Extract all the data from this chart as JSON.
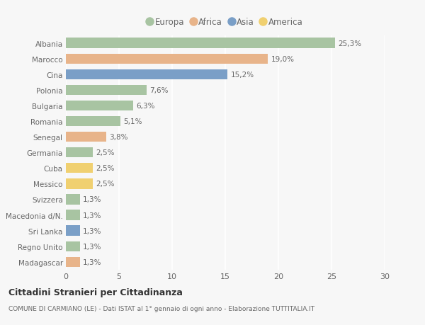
{
  "countries": [
    "Albania",
    "Marocco",
    "Cina",
    "Polonia",
    "Bulgaria",
    "Romania",
    "Senegal",
    "Germania",
    "Cuba",
    "Messico",
    "Svizzera",
    "Macedonia d/N.",
    "Sri Lanka",
    "Regno Unito",
    "Madagascar"
  ],
  "values": [
    25.3,
    19.0,
    15.2,
    7.6,
    6.3,
    5.1,
    3.8,
    2.5,
    2.5,
    2.5,
    1.3,
    1.3,
    1.3,
    1.3,
    1.3
  ],
  "labels": [
    "25,3%",
    "19,0%",
    "15,2%",
    "7,6%",
    "6,3%",
    "5,1%",
    "3,8%",
    "2,5%",
    "2,5%",
    "2,5%",
    "1,3%",
    "1,3%",
    "1,3%",
    "1,3%",
    "1,3%"
  ],
  "continents": [
    "Europa",
    "Africa",
    "Asia",
    "Europa",
    "Europa",
    "Europa",
    "Africa",
    "Europa",
    "America",
    "America",
    "Europa",
    "Europa",
    "Asia",
    "Europa",
    "Africa"
  ],
  "continent_colors": {
    "Europa": "#a8c4a2",
    "Africa": "#e8b48a",
    "Asia": "#7a9fc7",
    "America": "#f0d070"
  },
  "legend_order": [
    "Europa",
    "Africa",
    "Asia",
    "America"
  ],
  "bg_color": "#f7f7f7",
  "title": "Cittadini Stranieri per Cittadinanza",
  "subtitle": "COMUNE DI CARMIANO (LE) - Dati ISTAT al 1° gennaio di ogni anno - Elaborazione TUTTITALIA.IT",
  "xlim": [
    0,
    30
  ],
  "xticks": [
    0,
    5,
    10,
    15,
    20,
    25,
    30
  ],
  "bar_height": 0.65
}
